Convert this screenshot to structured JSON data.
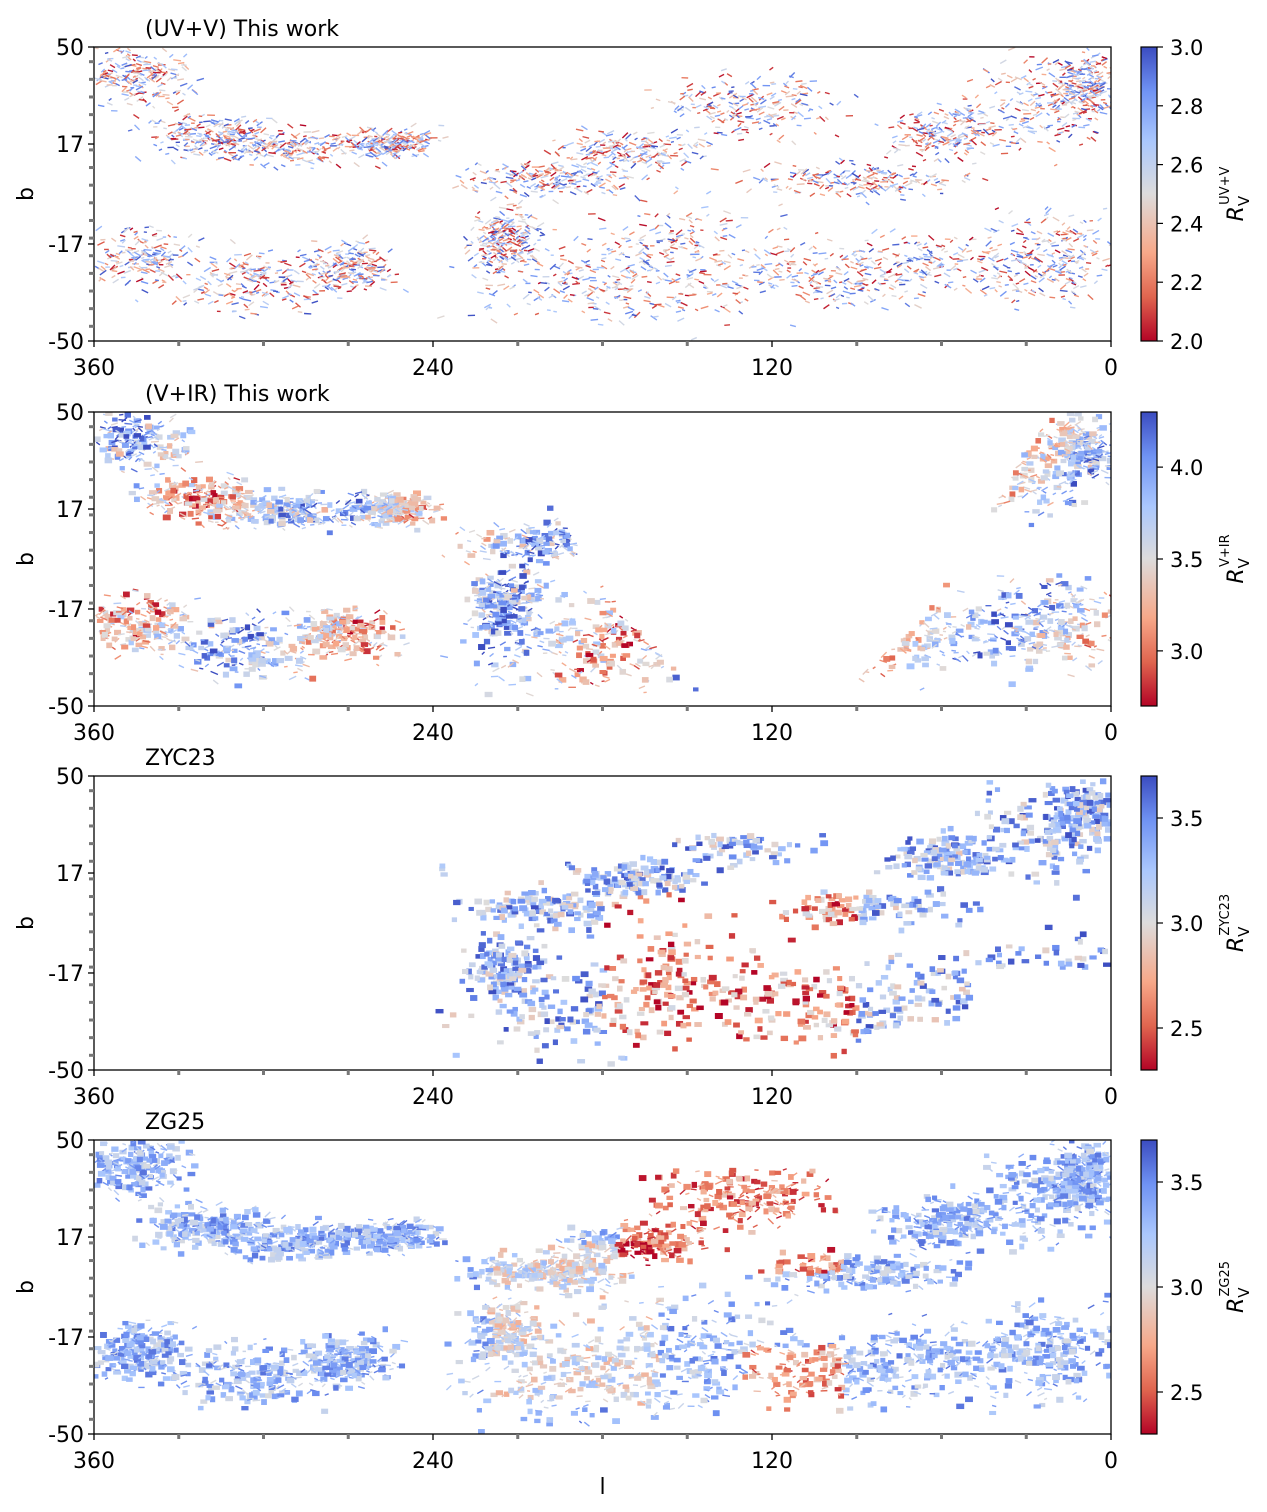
{
  "chart_data": [
    {
      "type": "heatmap",
      "title": "(UV+V) This work",
      "xlabel": "",
      "ylabel": "b",
      "xlim": [
        360,
        0
      ],
      "ylim": [
        -50,
        50
      ],
      "xticks": [
        "360",
        "240",
        "120",
        "0"
      ],
      "yticks": [
        "50",
        "17",
        "-17",
        "-50"
      ],
      "colormap": "coolwarm_r",
      "colorbar": {
        "label_main": "R",
        "label_sub": "V",
        "label_sup": "UV+V",
        "range": [
          2.0,
          3.0
        ],
        "ticks": [
          "2.0",
          "2.2",
          "2.4",
          "2.6",
          "2.8",
          "3.0"
        ]
      },
      "coverage": "full-sky",
      "pattern": "mixed"
    },
    {
      "type": "heatmap",
      "title": "(V+IR) This work",
      "xlabel": "",
      "ylabel": "b",
      "xlim": [
        360,
        0
      ],
      "ylim": [
        -50,
        50
      ],
      "xticks": [
        "360",
        "240",
        "120",
        "0"
      ],
      "yticks": [
        "50",
        "17",
        "-17",
        "-50"
      ],
      "colormap": "coolwarm_r",
      "colorbar": {
        "label_main": "R",
        "label_sub": "V",
        "label_sup": "V+IR",
        "range": [
          2.7,
          4.3
        ],
        "ticks": [
          "3.0",
          "3.5",
          "4.0"
        ]
      },
      "coverage": "avoids-northern-footprint-gap",
      "pattern": "blue-dominant"
    },
    {
      "type": "heatmap",
      "title": "ZYC23",
      "xlabel": "",
      "ylabel": "b",
      "xlim": [
        360,
        0
      ],
      "ylim": [
        -50,
        50
      ],
      "xticks": [
        "360",
        "240",
        "120",
        "0"
      ],
      "yticks": [
        "50",
        "17",
        "-17",
        "-50"
      ],
      "colormap": "coolwarm_r",
      "colorbar": {
        "label_main": "R",
        "label_sub": "V",
        "label_sup": "ZYC23",
        "range": [
          2.3,
          3.7
        ],
        "ticks": [
          "2.5",
          "3.0",
          "3.5"
        ]
      },
      "coverage": "l<240 only",
      "pattern": "mixed"
    },
    {
      "type": "heatmap",
      "title": "ZG25",
      "xlabel": "l",
      "ylabel": "b",
      "xlim": [
        360,
        0
      ],
      "ylim": [
        -50,
        50
      ],
      "xticks": [
        "360",
        "240",
        "120",
        "0"
      ],
      "yticks": [
        "50",
        "17",
        "-17",
        "-50"
      ],
      "colormap": "coolwarm_r",
      "colorbar": {
        "label_main": "R",
        "label_sub": "V",
        "label_sup": "ZG25",
        "range": [
          2.3,
          3.7
        ],
        "ticks": [
          "2.5",
          "3.0",
          "3.5"
        ]
      },
      "coverage": "full-sky",
      "pattern": "blue-with-red-center"
    }
  ]
}
